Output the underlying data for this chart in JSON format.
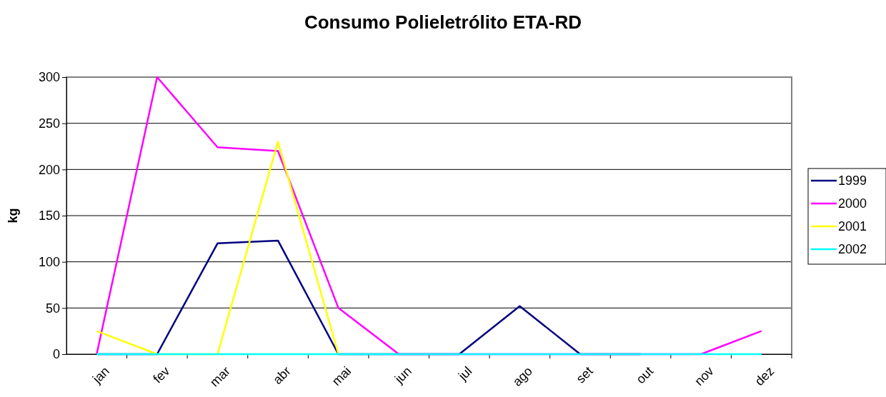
{
  "chart_data": {
    "type": "line",
    "title": "Consumo Polieletrólito ETA-RD",
    "ylabel": "kg",
    "categories": [
      "jan",
      "fev",
      "mar",
      "abr",
      "mai",
      "jun",
      "jul",
      "ago",
      "set",
      "out",
      "nov",
      "dez"
    ],
    "series": [
      {
        "name": "1999",
        "color": "#000080",
        "values": [
          0,
          0,
          120,
          123,
          0,
          0,
          0,
          52,
          0,
          0,
          null,
          null
        ]
      },
      {
        "name": "2000",
        "color": "#ff00ff",
        "values": [
          0,
          300,
          224,
          220,
          50,
          0,
          0,
          0,
          0,
          0,
          0,
          25
        ]
      },
      {
        "name": "2001",
        "color": "#ffff00",
        "values": [
          25,
          0,
          0,
          230,
          0,
          null,
          null,
          null,
          null,
          null,
          null,
          null
        ]
      },
      {
        "name": "2002",
        "color": "#00ffff",
        "values": [
          0,
          0,
          0,
          0,
          0,
          0,
          0,
          0,
          0,
          0,
          0,
          0
        ]
      }
    ],
    "ylim": [
      0,
      300
    ],
    "yticks": [
      0,
      50,
      100,
      150,
      200,
      250,
      300
    ],
    "grid": "y",
    "legend": "right",
    "marker": "none",
    "line_style": "solid"
  }
}
